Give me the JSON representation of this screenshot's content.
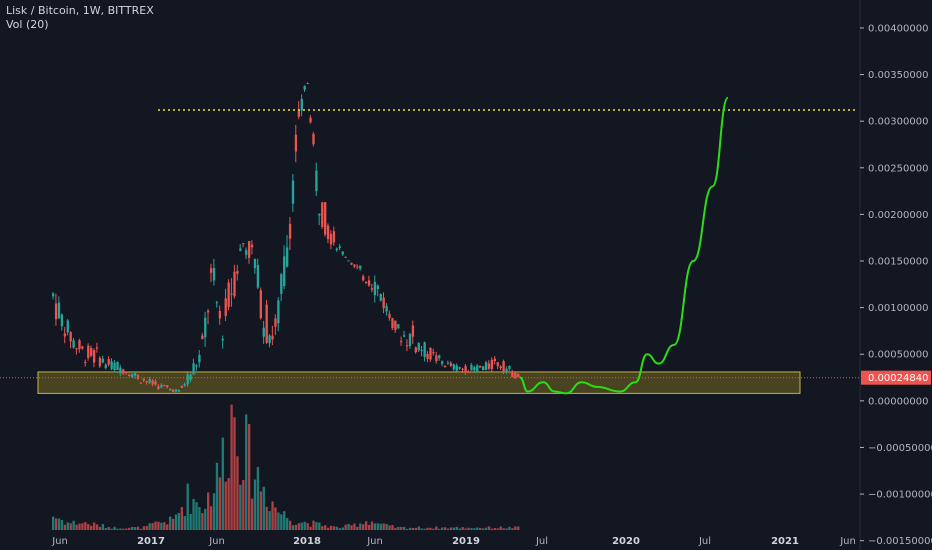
{
  "header": {
    "title": "Lisk / Bitcoin, 1W, BITTREX",
    "volume_label": "Vol (20)"
  },
  "colors": {
    "background": "#131722",
    "up": "#26a69a",
    "down": "#ef5350",
    "projection": "#2bdc16",
    "resistance": "#f5e33a",
    "zone_fill": "#8a7a1f",
    "zone_border": "#c8b43c",
    "price_line": "#ef5350",
    "axis_text": "#b2b5be"
  },
  "chart_data": {
    "type": "candlestick",
    "symbol": "Lisk / Bitcoin",
    "interval": "1W",
    "exchange": "BITTREX",
    "x_ticks": [
      {
        "label": "Jun",
        "bold": false
      },
      {
        "label": "2017",
        "bold": true
      },
      {
        "label": "Jun",
        "bold": false
      },
      {
        "label": "2018",
        "bold": true
      },
      {
        "label": "Jun",
        "bold": false
      },
      {
        "label": "2019",
        "bold": true
      },
      {
        "label": "Jul",
        "bold": false
      },
      {
        "label": "2020",
        "bold": true
      },
      {
        "label": "Jul",
        "bold": false
      },
      {
        "label": "2021",
        "bold": true
      },
      {
        "label": "Jun",
        "bold": false
      }
    ],
    "y_ticks": [
      "0.00400000",
      "0.00350000",
      "0.00300000",
      "0.00250000",
      "0.00200000",
      "0.00150000",
      "0.00100000",
      "0.00050000",
      "0.00000000",
      "−0.00050000",
      "−0.00100000",
      "−0.00150000"
    ],
    "ylim": [
      -0.0016,
      0.0043
    ],
    "last_price": "0.00024840",
    "last_price_value": 0.0002484,
    "resistance_level": 0.00312,
    "support_zone": [
      8e-05,
      0.00031
    ],
    "price_path": [
      [
        0.0009,
        0.00135
      ],
      [
        0.0007,
        0.00095
      ],
      [
        0.0005,
        0.00075
      ],
      [
        0.0004,
        0.0006
      ],
      [
        0.00038,
        0.0006
      ],
      [
        0.00035,
        0.00045
      ],
      [
        0.0003,
        0.00045
      ],
      [
        0.00028,
        0.00035
      ],
      [
        0.0002,
        0.00032
      ],
      [
        0.00015,
        0.00025
      ],
      [
        0.00012,
        0.0002
      ],
      [
        0.0001,
        0.00016
      ],
      [
        8e-05,
        0.00012
      ],
      [
        0.0002,
        0.0004
      ],
      [
        0.0004,
        0.0006
      ],
      [
        0.001,
        0.0016
      ],
      [
        0.0006,
        0.0009
      ],
      [
        0.001,
        0.0016
      ],
      [
        0.0016,
        0.0018
      ],
      [
        0.0014,
        0.0017
      ],
      [
        0.0006,
        0.0011
      ],
      [
        0.0005,
        0.0009
      ],
      [
        0.0012,
        0.0018
      ],
      [
        0.0025,
        0.003
      ],
      [
        0.0035,
        0.0035
      ],
      [
        0.002,
        0.0025
      ],
      [
        0.0017,
        0.002
      ],
      [
        0.0016,
        0.0017
      ],
      [
        0.0015,
        0.0015
      ],
      [
        0.0013,
        0.00145
      ],
      [
        0.0012,
        0.00145
      ],
      [
        0.001,
        0.0013
      ],
      [
        0.0008,
        0.0009
      ],
      [
        0.0006,
        0.0008
      ],
      [
        0.0005,
        0.00085
      ],
      [
        0.00045,
        0.00065
      ],
      [
        0.0004,
        0.00055
      ],
      [
        0.00035,
        0.00045
      ],
      [
        0.00032,
        0.0004
      ],
      [
        0.0003,
        0.00038
      ],
      [
        0.0003,
        0.0004
      ],
      [
        0.0003,
        0.00042
      ],
      [
        0.00035,
        0.00048
      ],
      [
        0.00028,
        0.0004
      ],
      [
        0.00022,
        0.0003
      ]
    ],
    "volume_path": [
      6,
      3,
      3,
      2,
      1,
      1,
      1,
      3,
      4,
      14,
      10,
      22,
      50,
      30,
      18,
      8,
      4,
      3,
      2,
      1,
      2,
      4,
      2,
      1,
      1,
      1,
      1,
      1,
      1,
      1,
      1,
      1
    ],
    "projection_path": [
      [
        0.00025,
        0
      ],
      [
        0.0001,
        0.2
      ],
      [
        0.0002,
        0.6
      ],
      [
        0.0001,
        0.9
      ],
      [
        8e-05,
        1.2
      ],
      [
        0.0002,
        1.6
      ],
      [
        0.00015,
        2.0
      ],
      [
        0.0001,
        2.6
      ],
      [
        0.0002,
        3.0
      ],
      [
        0.0005,
        3.3
      ],
      [
        0.0004,
        3.6
      ],
      [
        0.0006,
        4.0
      ],
      [
        0.0015,
        4.5
      ],
      [
        0.0023,
        5.0
      ],
      [
        0.00325,
        5.4
      ]
    ]
  }
}
